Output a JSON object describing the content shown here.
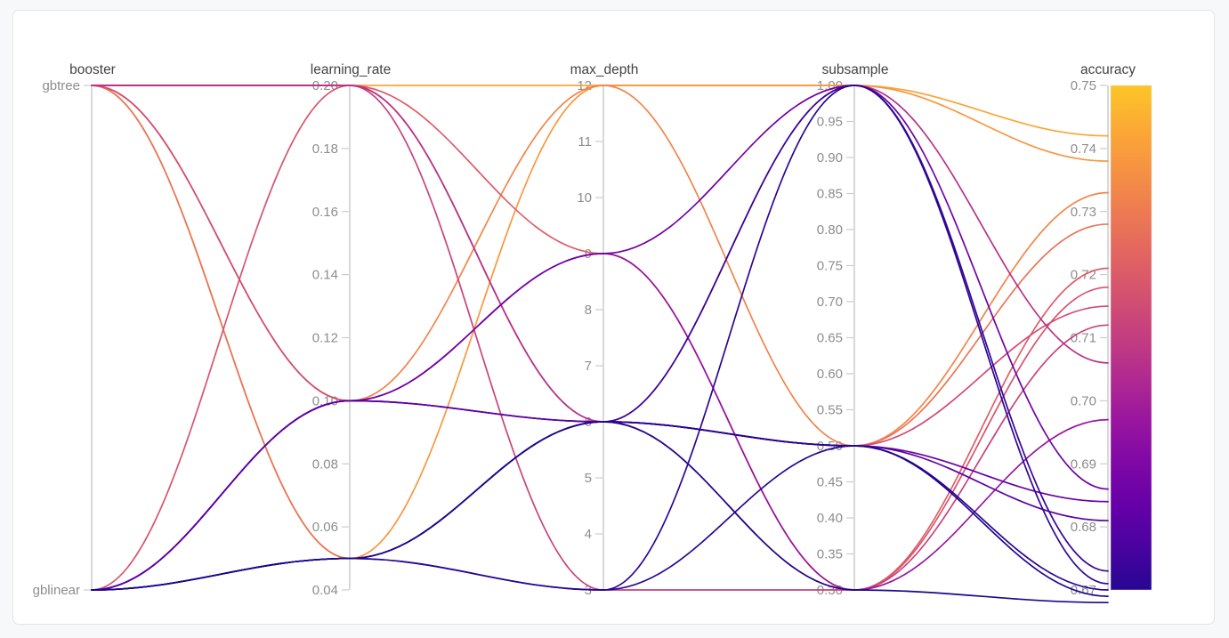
{
  "chart_data": {
    "type": "parallel-coordinates",
    "title": "",
    "legend_position": "none",
    "grid": false,
    "axes": [
      {
        "title": "booster",
        "type": "category",
        "tick_labels": [
          "gbtree",
          "gblinear"
        ]
      },
      {
        "title": "learning_rate",
        "type": "linear",
        "min": 0.04,
        "max": 0.2,
        "tick_labels": [
          "0.20",
          "0.18",
          "0.16",
          "0.14",
          "0.12",
          "0.10",
          "0.08",
          "0.06",
          "0.04"
        ],
        "tick_values": [
          0.2,
          0.18,
          0.16,
          0.14,
          0.12,
          0.1,
          0.08,
          0.06,
          0.04
        ]
      },
      {
        "title": "max_depth",
        "type": "linear",
        "min": 3,
        "max": 12,
        "tick_labels": [
          "12",
          "11",
          "10",
          "9",
          "8",
          "7",
          "6",
          "5",
          "4",
          "3"
        ],
        "tick_values": [
          12,
          11,
          10,
          9,
          8,
          7,
          6,
          5,
          4,
          3
        ]
      },
      {
        "title": "subsample",
        "type": "linear",
        "min": 0.3,
        "max": 1.0,
        "tick_labels": [
          "1.00",
          "0.95",
          "0.90",
          "0.85",
          "0.80",
          "0.75",
          "0.70",
          "0.65",
          "0.60",
          "0.55",
          "0.50",
          "0.45",
          "0.40",
          "0.35",
          "0.30"
        ],
        "tick_values": [
          1.0,
          0.95,
          0.9,
          0.85,
          0.8,
          0.75,
          0.7,
          0.65,
          0.6,
          0.55,
          0.5,
          0.45,
          0.4,
          0.35,
          0.3
        ]
      },
      {
        "title": "accuracy",
        "type": "linear",
        "min": 0.67,
        "max": 0.75,
        "tick_labels": [
          "0.75",
          "0.74",
          "0.73",
          "0.72",
          "0.71",
          "0.70",
          "0.69",
          "0.68",
          "0.67"
        ],
        "tick_values": [
          0.75,
          0.74,
          0.73,
          0.72,
          0.71,
          0.7,
          0.69,
          0.68,
          0.67
        ]
      }
    ],
    "colorbar": {
      "label": "accuracy",
      "min": 0.67,
      "max": 0.75,
      "colormap": "plasma"
    },
    "trials": [
      {
        "booster": "gbtree",
        "learning_rate": 0.2,
        "max_depth": 12,
        "subsample": 1.0,
        "accuracy": 0.742
      },
      {
        "booster": "gbtree",
        "learning_rate": 0.05,
        "max_depth": 12,
        "subsample": 1.0,
        "accuracy": 0.738
      },
      {
        "booster": "gbtree",
        "learning_rate": 0.1,
        "max_depth": 12,
        "subsample": 0.5,
        "accuracy": 0.733
      },
      {
        "booster": "gbtree",
        "learning_rate": 0.05,
        "max_depth": 6,
        "subsample": 0.5,
        "accuracy": 0.728
      },
      {
        "booster": "gbtree",
        "learning_rate": 0.2,
        "max_depth": 9,
        "subsample": 0.3,
        "accuracy": 0.721
      },
      {
        "booster": "gblinear",
        "learning_rate": 0.2,
        "max_depth": 6,
        "subsample": 0.3,
        "accuracy": 0.718
      },
      {
        "booster": "gbtree",
        "learning_rate": 0.1,
        "max_depth": 6,
        "subsample": 0.5,
        "accuracy": 0.715
      },
      {
        "booster": "gbtree",
        "learning_rate": 0.2,
        "max_depth": 3,
        "subsample": 0.3,
        "accuracy": 0.712
      },
      {
        "booster": "gbtree",
        "learning_rate": 0.2,
        "max_depth": 6,
        "subsample": 1.0,
        "accuracy": 0.706
      },
      {
        "booster": "gblinear",
        "learning_rate": 0.1,
        "max_depth": 9,
        "subsample": 0.3,
        "accuracy": 0.697
      },
      {
        "booster": "gblinear",
        "learning_rate": 0.1,
        "max_depth": 9,
        "subsample": 1.0,
        "accuracy": 0.686
      },
      {
        "booster": "gblinear",
        "learning_rate": 0.1,
        "max_depth": 6,
        "subsample": 0.5,
        "accuracy": 0.684
      },
      {
        "booster": "gblinear",
        "learning_rate": 0.1,
        "max_depth": 6,
        "subsample": 0.5,
        "accuracy": 0.681
      },
      {
        "booster": "gblinear",
        "learning_rate": 0.05,
        "max_depth": 6,
        "subsample": 1.0,
        "accuracy": 0.673
      },
      {
        "booster": "gblinear",
        "learning_rate": 0.05,
        "max_depth": 3,
        "subsample": 1.0,
        "accuracy": 0.671
      },
      {
        "booster": "gblinear",
        "learning_rate": 0.05,
        "max_depth": 3,
        "subsample": 0.5,
        "accuracy": 0.67
      },
      {
        "booster": "gblinear",
        "learning_rate": 0.05,
        "max_depth": 6,
        "subsample": 0.5,
        "accuracy": 0.669
      },
      {
        "booster": "gblinear",
        "learning_rate": 0.05,
        "max_depth": 6,
        "subsample": 0.3,
        "accuracy": 0.668
      }
    ]
  },
  "colors": {
    "page_background": "#f7f8f9",
    "card_background": "#ffffff",
    "card_border": "#e3e5e8",
    "axis_line": "#cccccc",
    "tick_label": "#8d8d8d",
    "axis_title": "#434343",
    "plasma_anchors": [
      "#0d0887",
      "#41049d",
      "#6a00a8",
      "#8f0da4",
      "#b12a90",
      "#cc4778",
      "#e16462",
      "#f2844b",
      "#fca636",
      "#fcce25",
      "#f0f921"
    ]
  }
}
